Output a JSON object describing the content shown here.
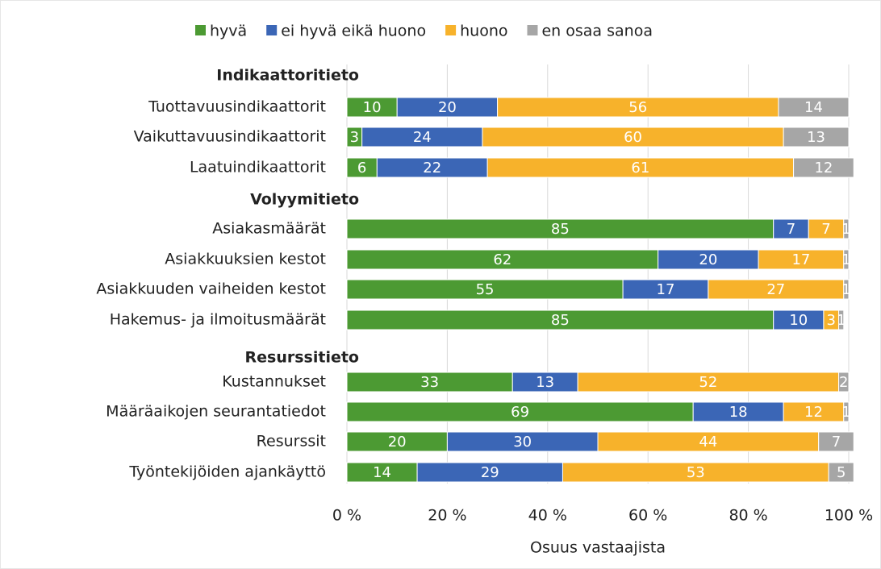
{
  "chart_data": {
    "type": "bar",
    "orientation": "horizontal",
    "stacked": true,
    "groups": [
      {
        "name": "Indikaattoritieto",
        "categories": [
          "Tuottavuusindikaattorit",
          "Vaikuttavuusindikaattorit",
          "Laatuindikaattorit"
        ]
      },
      {
        "name": "Volyymitieto",
        "categories": [
          "Asiakasmäärät",
          "Asiakkuuksien kestot",
          "Asiakkuuden vaiheiden kestot",
          "Hakemus- ja ilmoitusmäärät"
        ]
      },
      {
        "name": "Resurssitieto",
        "categories": [
          "Kustannukset",
          "Määräaikojen seurantatiedot",
          "Resurssit",
          "Työntekijöiden ajankäyttö"
        ]
      }
    ],
    "series": [
      {
        "name": "hyvä",
        "color": "#4c9a33",
        "values": [
          10,
          3,
          6,
          85,
          62,
          55,
          85,
          33,
          69,
          20,
          14
        ]
      },
      {
        "name": "ei hyvä eikä huono",
        "color": "#3b66b6",
        "values": [
          20,
          24,
          22,
          7,
          20,
          17,
          10,
          13,
          18,
          30,
          29
        ]
      },
      {
        "name": "huono",
        "color": "#f7b22b",
        "values": [
          56,
          60,
          61,
          7,
          17,
          27,
          3,
          52,
          12,
          44,
          53
        ]
      },
      {
        "name": "en osaa sanoa",
        "color": "#a6a6a6",
        "values": [
          14,
          13,
          12,
          1,
          1,
          1,
          1,
          2,
          1,
          7,
          5
        ]
      }
    ],
    "xlim": [
      0,
      100
    ],
    "xticks": [
      {
        "value": 0,
        "label": "0 %"
      },
      {
        "value": 20,
        "label": "20 %"
      },
      {
        "value": 40,
        "label": "40 %"
      },
      {
        "value": 60,
        "label": "60 %"
      },
      {
        "value": 80,
        "label": "80 %"
      },
      {
        "value": 100,
        "label": "100 %"
      }
    ],
    "xlabel": "Osuus vastaajista",
    "grid": true,
    "legend": "top"
  }
}
